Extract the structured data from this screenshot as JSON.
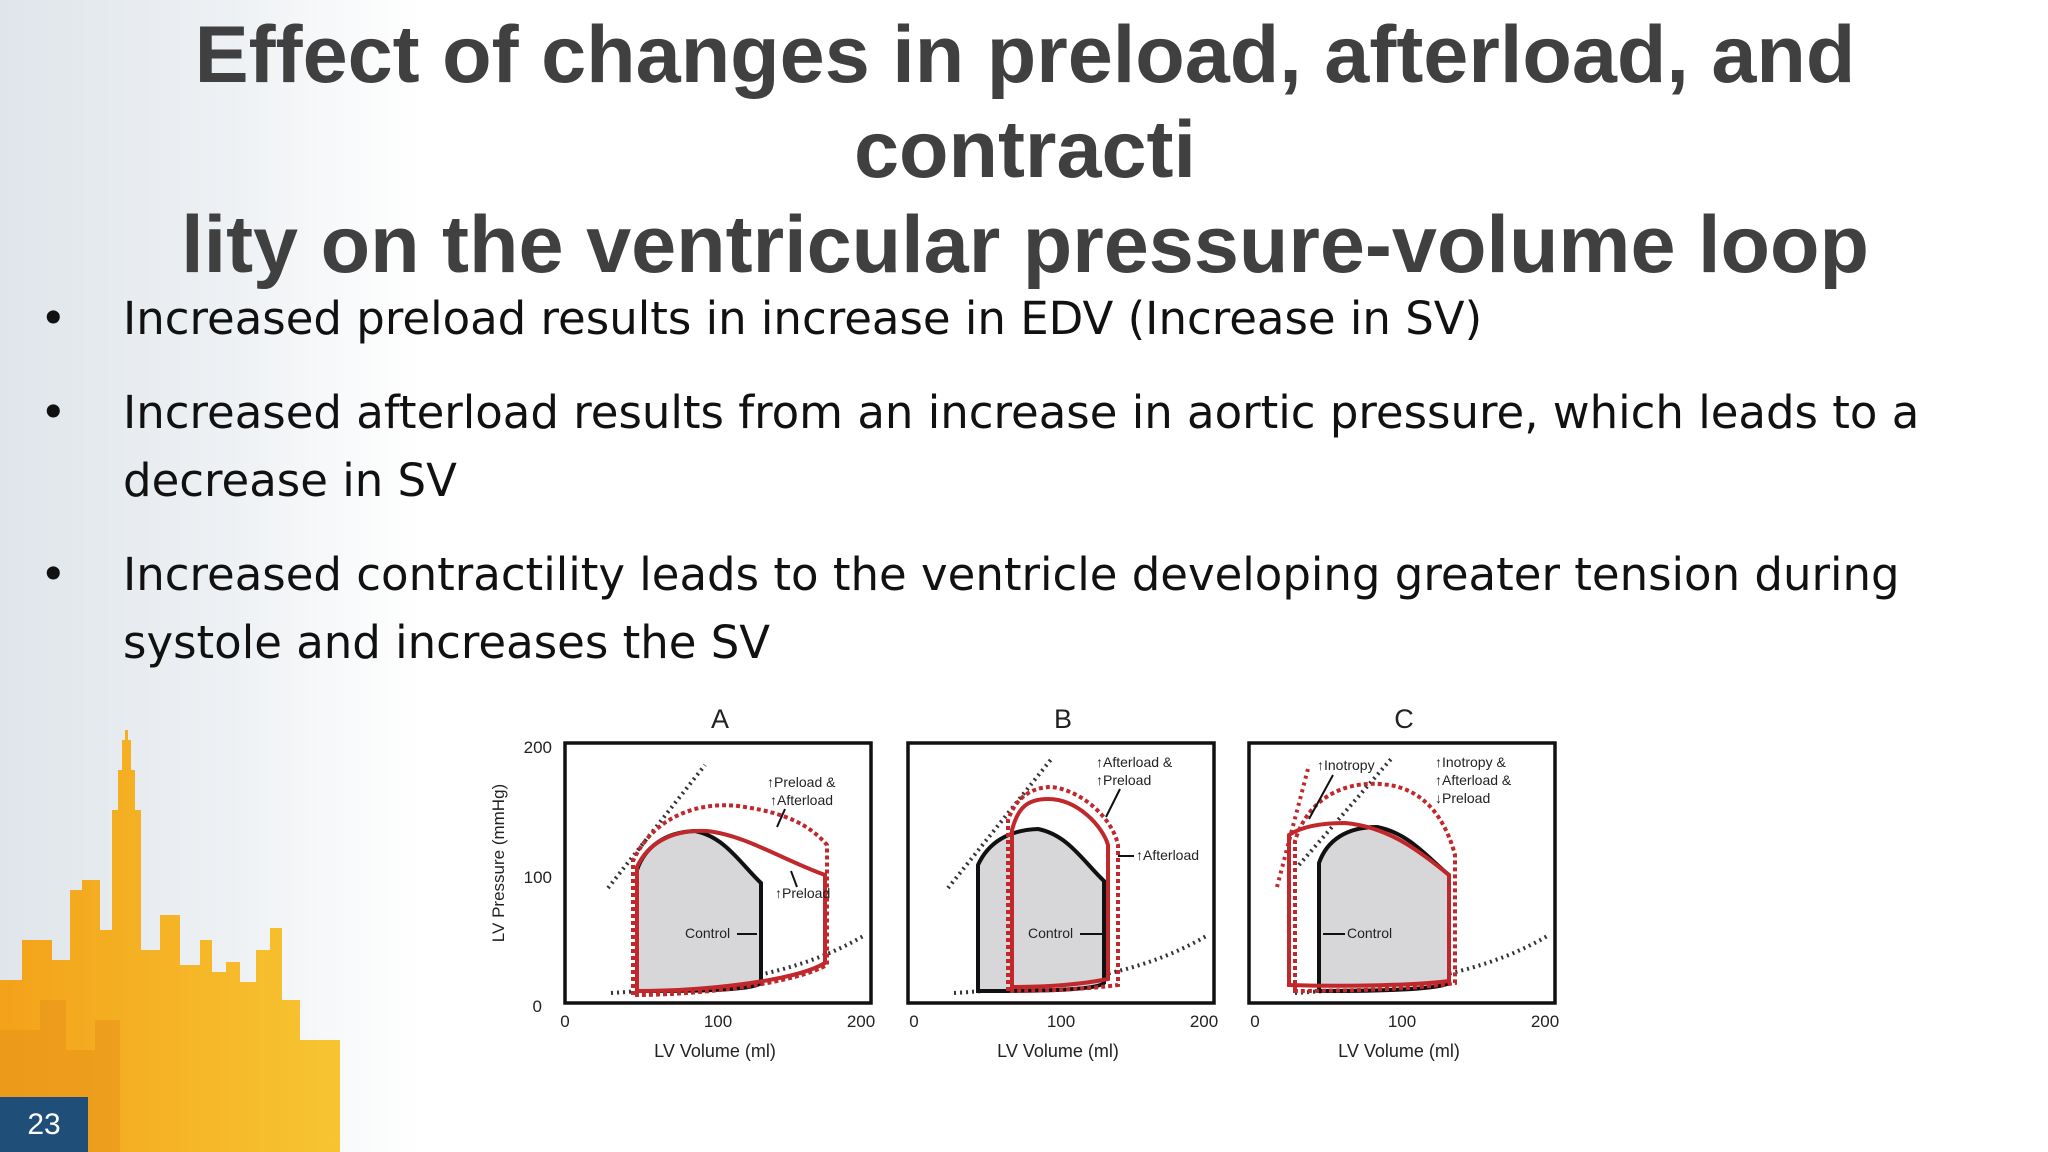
{
  "slide": {
    "title_line1": "Effect of changes in preload, afterload, and contracti",
    "title_line2": "lity on the ventricular pressure-volume loop",
    "bullets": [
      "Increased preload results in increase in EDV (Increase in SV)",
      "Increased afterload results from an increase in aortic pressure, which leads to a decrease in SV",
      "Increased contractility leads to the ventricle developing greater tension during systole and increases the SV"
    ],
    "bullet_symbol": "•",
    "slide_number": "23"
  },
  "figure": {
    "ylabel": "LV Pressure (mmHg)",
    "xlabel": "LV  Volume (ml)",
    "y_ticks": [
      "0",
      "100",
      "200"
    ],
    "x_ticks": [
      "0",
      "100",
      "200"
    ],
    "panels": [
      {
        "label": "A",
        "control_label": "Control",
        "annotations": [
          "↑Preload &",
          "↑Afterload",
          "↑Preload"
        ]
      },
      {
        "label": "B",
        "control_label": "Control",
        "annotations": [
          "↑Afterload &",
          "↑Preload",
          "↑Afterload"
        ]
      },
      {
        "label": "C",
        "control_label": "Control",
        "annotations": [
          "↑Inotropy",
          "↑Inotropy &",
          "↑Afterload &",
          "↓Preload"
        ]
      }
    ]
  },
  "colors": {
    "title": "#404040",
    "loop_red": "#c0282c",
    "control_fill": "#d7d7d9",
    "skyline_orange": "#f2a71b",
    "slide_number_bg": "#1f4e79"
  }
}
